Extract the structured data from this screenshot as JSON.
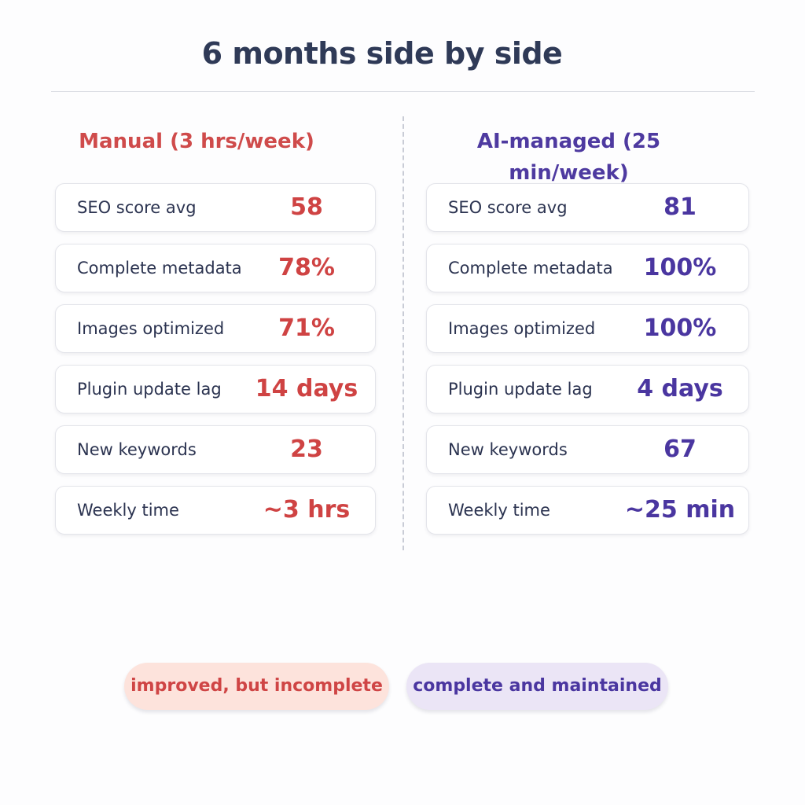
{
  "title": "6 months side by side",
  "colors": {
    "manual": "#cf4b4b",
    "ai": "#4e3aa0",
    "manual_pill_bg": "#fde3dc",
    "ai_pill_bg": "#ebe5f6"
  },
  "manual": {
    "heading": "Manual (3 hrs/week)",
    "rows": [
      {
        "label": "SEO score avg",
        "value": "58"
      },
      {
        "label": "Complete metadata",
        "value": "78%"
      },
      {
        "label": "Images optimized",
        "value": "71%"
      },
      {
        "label": "Plugin update lag",
        "value": "14 days"
      },
      {
        "label": "New keywords",
        "value": "23"
      },
      {
        "label": "Weekly time",
        "value": "~3 hrs"
      }
    ],
    "summary": "improved, but incomplete"
  },
  "ai": {
    "heading": "AI-managed (25 min/week)",
    "rows": [
      {
        "label": "SEO score avg",
        "value": "81"
      },
      {
        "label": "Complete metadata",
        "value": "100%"
      },
      {
        "label": "Images optimized",
        "value": "100%"
      },
      {
        "label": "Plugin update lag",
        "value": "4 days"
      },
      {
        "label": "New keywords",
        "value": "67"
      },
      {
        "label": "Weekly time",
        "value": "~25 min"
      }
    ],
    "summary": "complete and maintained"
  }
}
